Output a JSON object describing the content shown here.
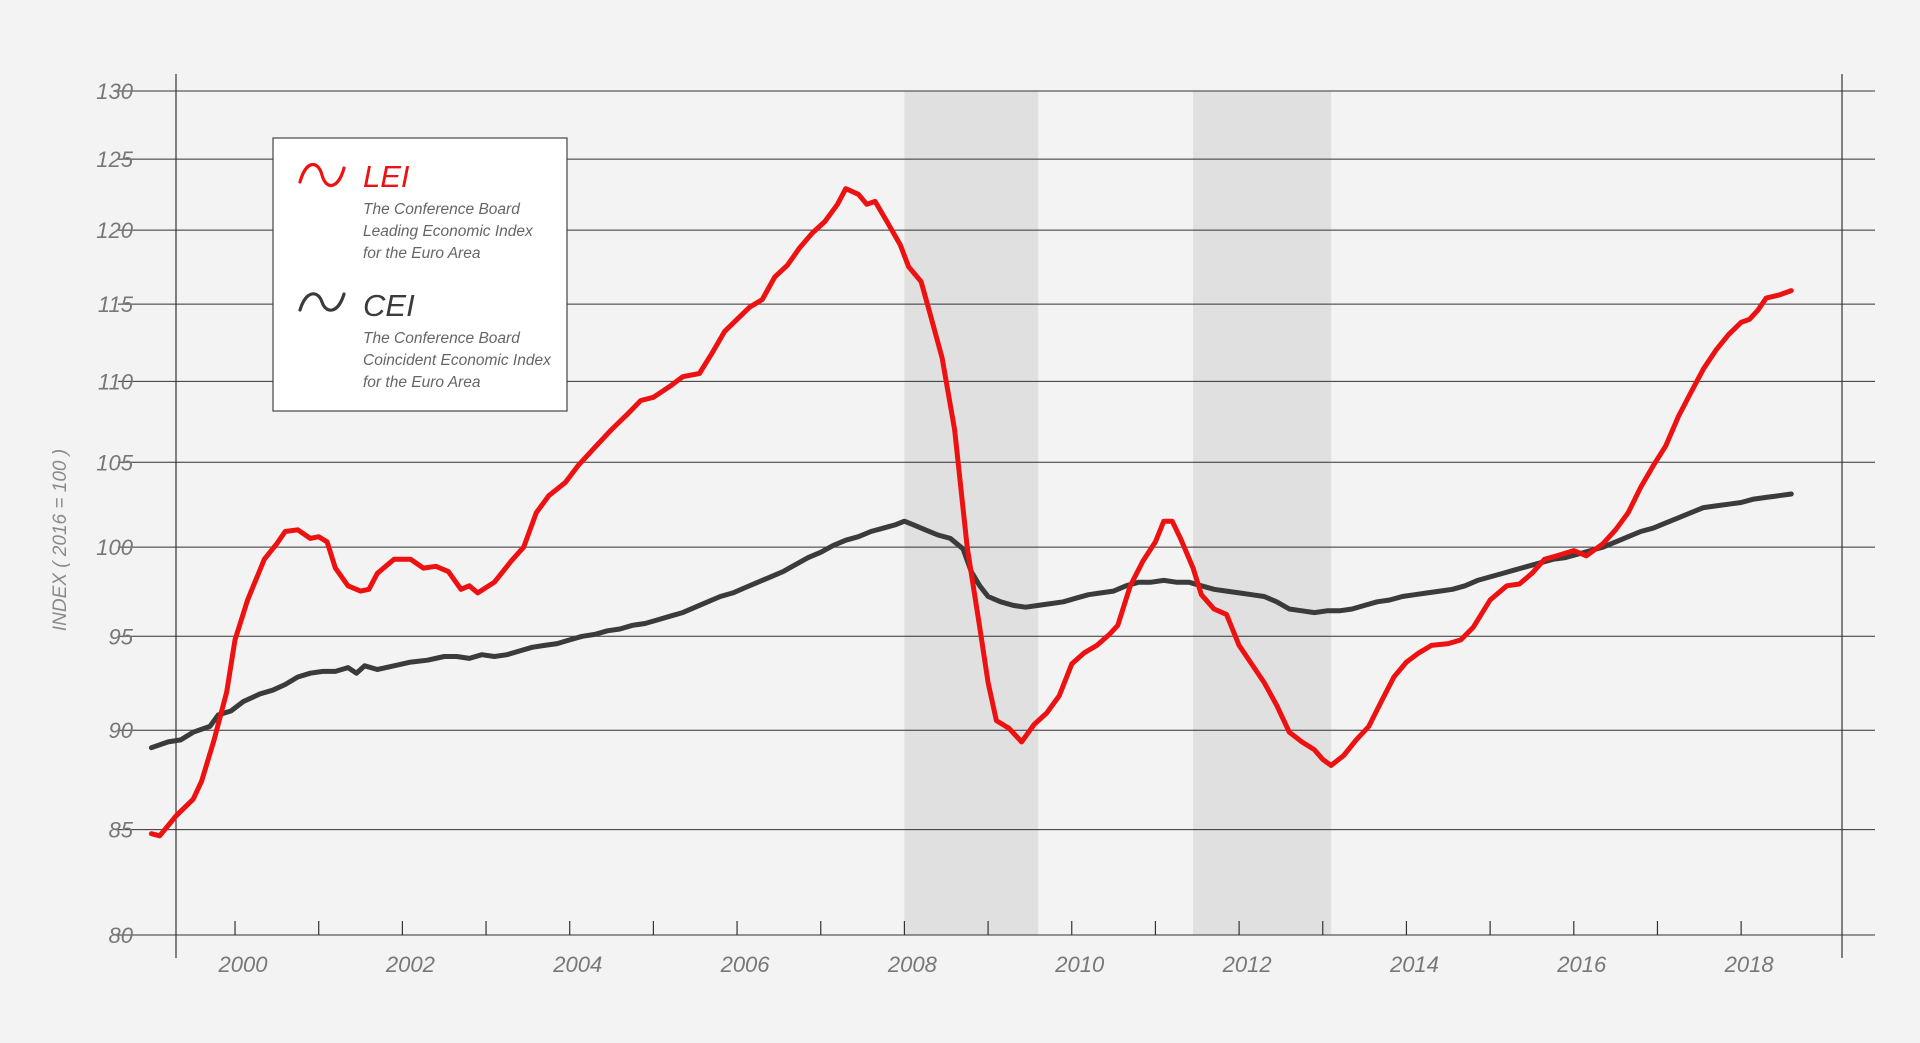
{
  "chart_data": {
    "type": "line",
    "ylabel": "INDEX ( 2016 = 100 )",
    "yscale": "log",
    "ylim": [
      80,
      130
    ],
    "yticks": [
      80,
      85,
      90,
      95,
      100,
      105,
      110,
      115,
      120,
      125,
      130
    ],
    "xlim": [
      1998.9,
      2019.6
    ],
    "xticks": [
      2000,
      2002,
      2004,
      2006,
      2008,
      2010,
      2012,
      2014,
      2016,
      2018
    ],
    "minor_xticks": [
      2001,
      2003,
      2005,
      2007,
      2009,
      2011,
      2013,
      2015,
      2017
    ],
    "recessions": [
      [
        2008.0,
        2009.6
      ],
      [
        2011.45,
        2013.1
      ]
    ],
    "grid": true,
    "colors": {
      "lei": "#ee1111",
      "cei": "#3b3b3b",
      "recession": "#e0e0e0",
      "grid": "#333333"
    },
    "legend": {
      "position": "top-left",
      "entries": [
        {
          "key": "lei",
          "name": "LEI",
          "lines": [
            "The Conference Board",
            "Leading Economic Index",
            "for the Euro Area"
          ]
        },
        {
          "key": "cei",
          "name": "CEI",
          "lines": [
            "The Conference Board",
            "Coincident Economic Index",
            "for the Euro Area"
          ]
        }
      ]
    },
    "series": [
      {
        "key": "lei",
        "name": "LEI",
        "points": [
          [
            1999.0,
            84.8
          ],
          [
            1999.1,
            84.7
          ],
          [
            1999.3,
            85.7
          ],
          [
            1999.5,
            86.5
          ],
          [
            1999.6,
            87.4
          ],
          [
            1999.75,
            89.5
          ],
          [
            1999.9,
            92.0
          ],
          [
            2000.0,
            94.8
          ],
          [
            2000.15,
            97.0
          ],
          [
            2000.35,
            99.3
          ],
          [
            2000.5,
            100.2
          ],
          [
            2000.6,
            100.9
          ],
          [
            2000.75,
            101.0
          ],
          [
            2000.9,
            100.5
          ],
          [
            2001.0,
            100.6
          ],
          [
            2001.1,
            100.3
          ],
          [
            2001.2,
            98.8
          ],
          [
            2001.35,
            97.8
          ],
          [
            2001.5,
            97.5
          ],
          [
            2001.6,
            97.6
          ],
          [
            2001.7,
            98.5
          ],
          [
            2001.9,
            99.3
          ],
          [
            2002.1,
            99.3
          ],
          [
            2002.25,
            98.8
          ],
          [
            2002.4,
            98.9
          ],
          [
            2002.55,
            98.6
          ],
          [
            2002.7,
            97.6
          ],
          [
            2002.8,
            97.8
          ],
          [
            2002.9,
            97.4
          ],
          [
            2003.1,
            98.0
          ],
          [
            2003.3,
            99.2
          ],
          [
            2003.45,
            100.0
          ],
          [
            2003.6,
            102.0
          ],
          [
            2003.75,
            103.0
          ],
          [
            2003.95,
            103.8
          ],
          [
            2004.1,
            104.8
          ],
          [
            2004.3,
            105.9
          ],
          [
            2004.5,
            107.0
          ],
          [
            2004.7,
            108.0
          ],
          [
            2004.85,
            108.8
          ],
          [
            2005.0,
            109.0
          ],
          [
            2005.2,
            109.7
          ],
          [
            2005.35,
            110.3
          ],
          [
            2005.55,
            110.5
          ],
          [
            2005.7,
            111.8
          ],
          [
            2005.85,
            113.2
          ],
          [
            2006.0,
            114.0
          ],
          [
            2006.15,
            114.8
          ],
          [
            2006.3,
            115.3
          ],
          [
            2006.45,
            116.8
          ],
          [
            2006.6,
            117.6
          ],
          [
            2006.75,
            118.8
          ],
          [
            2006.9,
            119.8
          ],
          [
            2007.05,
            120.6
          ],
          [
            2007.2,
            121.8
          ],
          [
            2007.3,
            122.9
          ],
          [
            2007.45,
            122.5
          ],
          [
            2007.55,
            121.8
          ],
          [
            2007.65,
            122.0
          ],
          [
            2007.8,
            120.5
          ],
          [
            2007.95,
            119.0
          ],
          [
            2008.05,
            117.5
          ],
          [
            2008.2,
            116.5
          ],
          [
            2008.3,
            114.5
          ],
          [
            2008.45,
            111.5
          ],
          [
            2008.6,
            107.0
          ],
          [
            2008.75,
            100.0
          ],
          [
            2008.9,
            95.5
          ],
          [
            2009.0,
            92.5
          ],
          [
            2009.1,
            90.5
          ],
          [
            2009.25,
            90.1
          ],
          [
            2009.4,
            89.4
          ],
          [
            2009.55,
            90.3
          ],
          [
            2009.7,
            90.9
          ],
          [
            2009.85,
            91.8
          ],
          [
            2010.0,
            93.5
          ],
          [
            2010.15,
            94.1
          ],
          [
            2010.3,
            94.5
          ],
          [
            2010.45,
            95.1
          ],
          [
            2010.55,
            95.6
          ],
          [
            2010.7,
            97.8
          ],
          [
            2010.85,
            99.2
          ],
          [
            2011.0,
            100.3
          ],
          [
            2011.1,
            101.5
          ],
          [
            2011.2,
            101.5
          ],
          [
            2011.3,
            100.5
          ],
          [
            2011.45,
            98.8
          ],
          [
            2011.55,
            97.3
          ],
          [
            2011.7,
            96.5
          ],
          [
            2011.85,
            96.2
          ],
          [
            2012.0,
            94.5
          ],
          [
            2012.15,
            93.5
          ],
          [
            2012.3,
            92.5
          ],
          [
            2012.45,
            91.3
          ],
          [
            2012.6,
            89.9
          ],
          [
            2012.75,
            89.4
          ],
          [
            2012.9,
            89.0
          ],
          [
            2013.0,
            88.5
          ],
          [
            2013.1,
            88.2
          ],
          [
            2013.25,
            88.7
          ],
          [
            2013.4,
            89.5
          ],
          [
            2013.55,
            90.2
          ],
          [
            2013.7,
            91.5
          ],
          [
            2013.85,
            92.8
          ],
          [
            2014.0,
            93.6
          ],
          [
            2014.15,
            94.1
          ],
          [
            2014.3,
            94.5
          ],
          [
            2014.5,
            94.6
          ],
          [
            2014.65,
            94.8
          ],
          [
            2014.8,
            95.5
          ],
          [
            2015.0,
            97.0
          ],
          [
            2015.2,
            97.8
          ],
          [
            2015.35,
            97.9
          ],
          [
            2015.5,
            98.5
          ],
          [
            2015.65,
            99.3
          ],
          [
            2015.8,
            99.5
          ],
          [
            2016.0,
            99.8
          ],
          [
            2016.15,
            99.5
          ],
          [
            2016.35,
            100.2
          ],
          [
            2016.5,
            101.0
          ],
          [
            2016.65,
            102.0
          ],
          [
            2016.8,
            103.5
          ],
          [
            2016.95,
            104.8
          ],
          [
            2017.1,
            106.0
          ],
          [
            2017.25,
            107.8
          ],
          [
            2017.4,
            109.3
          ],
          [
            2017.55,
            110.8
          ],
          [
            2017.7,
            112.0
          ],
          [
            2017.85,
            113.0
          ],
          [
            2018.0,
            113.8
          ],
          [
            2018.1,
            114.0
          ],
          [
            2018.2,
            114.6
          ],
          [
            2018.3,
            115.4
          ],
          [
            2018.45,
            115.6
          ],
          [
            2018.6,
            115.9
          ]
        ]
      },
      {
        "key": "cei",
        "name": "CEI",
        "points": [
          [
            1999.0,
            89.1
          ],
          [
            1999.2,
            89.4
          ],
          [
            1999.35,
            89.5
          ],
          [
            1999.5,
            89.9
          ],
          [
            1999.7,
            90.2
          ],
          [
            1999.8,
            90.8
          ],
          [
            1999.95,
            91.0
          ],
          [
            2000.1,
            91.5
          ],
          [
            2000.3,
            91.9
          ],
          [
            2000.45,
            92.1
          ],
          [
            2000.6,
            92.4
          ],
          [
            2000.75,
            92.8
          ],
          [
            2000.9,
            93.0
          ],
          [
            2001.05,
            93.1
          ],
          [
            2001.2,
            93.1
          ],
          [
            2001.35,
            93.3
          ],
          [
            2001.45,
            93.0
          ],
          [
            2001.55,
            93.4
          ],
          [
            2001.7,
            93.2
          ],
          [
            2001.9,
            93.4
          ],
          [
            2002.1,
            93.6
          ],
          [
            2002.3,
            93.7
          ],
          [
            2002.5,
            93.9
          ],
          [
            2002.65,
            93.9
          ],
          [
            2002.8,
            93.8
          ],
          [
            2002.95,
            94.0
          ],
          [
            2003.1,
            93.9
          ],
          [
            2003.25,
            94.0
          ],
          [
            2003.4,
            94.2
          ],
          [
            2003.55,
            94.4
          ],
          [
            2003.7,
            94.5
          ],
          [
            2003.85,
            94.6
          ],
          [
            2004.0,
            94.8
          ],
          [
            2004.15,
            95.0
          ],
          [
            2004.3,
            95.1
          ],
          [
            2004.45,
            95.3
          ],
          [
            2004.6,
            95.4
          ],
          [
            2004.75,
            95.6
          ],
          [
            2004.9,
            95.7
          ],
          [
            2005.05,
            95.9
          ],
          [
            2005.2,
            96.1
          ],
          [
            2005.35,
            96.3
          ],
          [
            2005.5,
            96.6
          ],
          [
            2005.65,
            96.9
          ],
          [
            2005.8,
            97.2
          ],
          [
            2005.95,
            97.4
          ],
          [
            2006.1,
            97.7
          ],
          [
            2006.25,
            98.0
          ],
          [
            2006.4,
            98.3
          ],
          [
            2006.55,
            98.6
          ],
          [
            2006.7,
            99.0
          ],
          [
            2006.85,
            99.4
          ],
          [
            2007.0,
            99.7
          ],
          [
            2007.15,
            100.1
          ],
          [
            2007.3,
            100.4
          ],
          [
            2007.45,
            100.6
          ],
          [
            2007.6,
            100.9
          ],
          [
            2007.75,
            101.1
          ],
          [
            2007.9,
            101.3
          ],
          [
            2008.0,
            101.5
          ],
          [
            2008.1,
            101.3
          ],
          [
            2008.25,
            101.0
          ],
          [
            2008.4,
            100.7
          ],
          [
            2008.55,
            100.5
          ],
          [
            2008.7,
            99.9
          ],
          [
            2008.8,
            98.6
          ],
          [
            2008.9,
            97.8
          ],
          [
            2009.0,
            97.2
          ],
          [
            2009.15,
            96.9
          ],
          [
            2009.3,
            96.7
          ],
          [
            2009.45,
            96.6
          ],
          [
            2009.6,
            96.7
          ],
          [
            2009.75,
            96.8
          ],
          [
            2009.9,
            96.9
          ],
          [
            2010.05,
            97.1
          ],
          [
            2010.2,
            97.3
          ],
          [
            2010.35,
            97.4
          ],
          [
            2010.5,
            97.5
          ],
          [
            2010.65,
            97.8
          ],
          [
            2010.8,
            98.0
          ],
          [
            2010.95,
            98.0
          ],
          [
            2011.1,
            98.1
          ],
          [
            2011.25,
            98.0
          ],
          [
            2011.4,
            98.0
          ],
          [
            2011.55,
            97.8
          ],
          [
            2011.7,
            97.6
          ],
          [
            2011.85,
            97.5
          ],
          [
            2012.0,
            97.4
          ],
          [
            2012.15,
            97.3
          ],
          [
            2012.3,
            97.2
          ],
          [
            2012.45,
            96.9
          ],
          [
            2012.6,
            96.5
          ],
          [
            2012.75,
            96.4
          ],
          [
            2012.9,
            96.3
          ],
          [
            2013.05,
            96.4
          ],
          [
            2013.2,
            96.4
          ],
          [
            2013.35,
            96.5
          ],
          [
            2013.5,
            96.7
          ],
          [
            2013.65,
            96.9
          ],
          [
            2013.8,
            97.0
          ],
          [
            2013.95,
            97.2
          ],
          [
            2014.1,
            97.3
          ],
          [
            2014.25,
            97.4
          ],
          [
            2014.4,
            97.5
          ],
          [
            2014.55,
            97.6
          ],
          [
            2014.7,
            97.8
          ],
          [
            2014.85,
            98.1
          ],
          [
            2015.0,
            98.3
          ],
          [
            2015.15,
            98.5
          ],
          [
            2015.3,
            98.7
          ],
          [
            2015.45,
            98.9
          ],
          [
            2015.6,
            99.1
          ],
          [
            2015.75,
            99.3
          ],
          [
            2015.9,
            99.4
          ],
          [
            2016.05,
            99.6
          ],
          [
            2016.2,
            99.8
          ],
          [
            2016.35,
            100.0
          ],
          [
            2016.5,
            100.3
          ],
          [
            2016.65,
            100.6
          ],
          [
            2016.8,
            100.9
          ],
          [
            2016.95,
            101.1
          ],
          [
            2017.1,
            101.4
          ],
          [
            2017.25,
            101.7
          ],
          [
            2017.4,
            102.0
          ],
          [
            2017.55,
            102.3
          ],
          [
            2017.7,
            102.4
          ],
          [
            2017.85,
            102.5
          ],
          [
            2018.0,
            102.6
          ],
          [
            2018.15,
            102.8
          ],
          [
            2018.3,
            102.9
          ],
          [
            2018.45,
            103.0
          ],
          [
            2018.6,
            103.1
          ]
        ]
      }
    ]
  }
}
